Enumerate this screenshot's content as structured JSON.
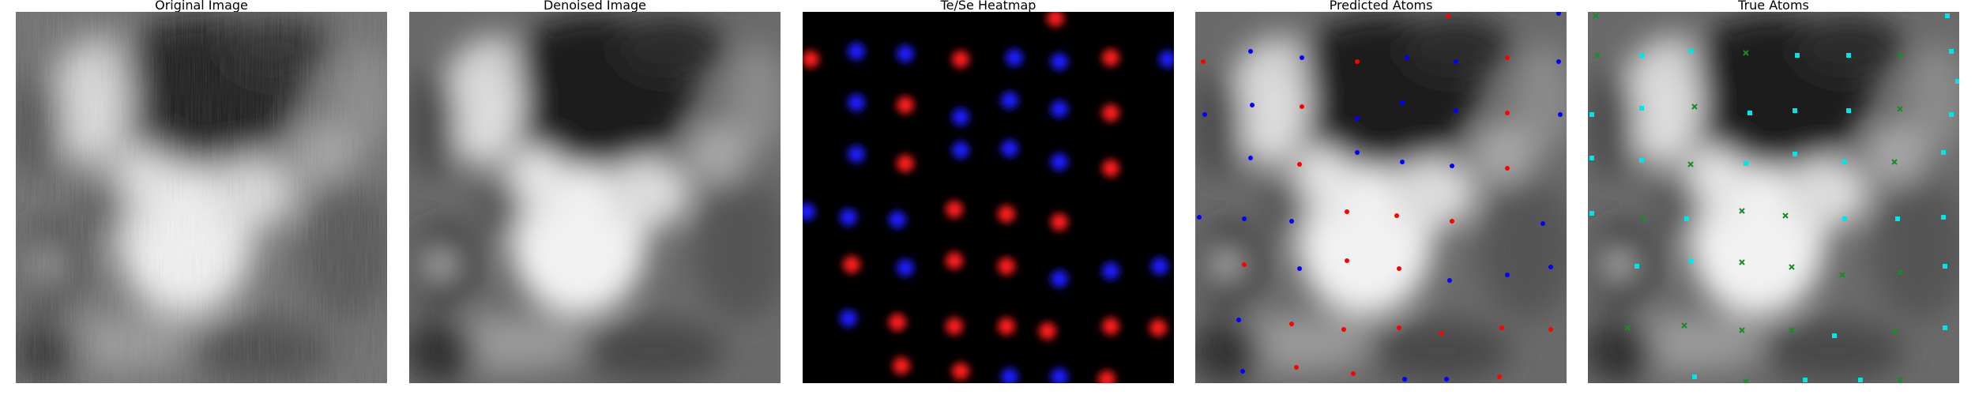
{
  "panels": [
    {
      "id": "original",
      "title": "Original Image"
    },
    {
      "id": "denoised",
      "title": "Denoised Image"
    },
    {
      "id": "heatmap",
      "title": "Te/Se Heatmap"
    },
    {
      "id": "predicted",
      "title": "Predicted Atoms"
    },
    {
      "id": "true",
      "title": "True Atoms"
    }
  ],
  "colors": {
    "te_predicted": "#ff0000",
    "se_predicted": "#0000ff",
    "te_true": "#1a8a2a",
    "se_true": "#00e5e5",
    "heat_te": "#ff1a1a",
    "heat_se": "#1a1aff"
  }
}
